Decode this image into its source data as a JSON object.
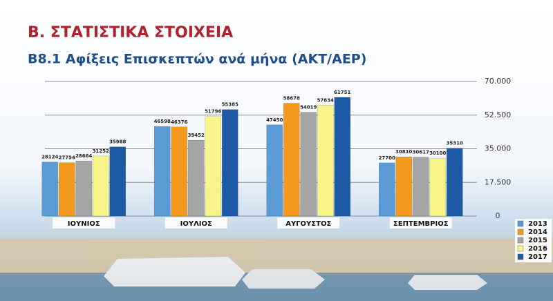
{
  "chart_data": {
    "type": "bar",
    "title": "Β. ΣΤΑΤΙΣΤΙΚΑ ΣΤΟΙΧΕΙΑ",
    "subtitle": "Β8.1 Αφίξεις Επισκεπτών ανά μήνα (ΑΚΤ/ΑΕΡ)",
    "categories": [
      "ΙΟΥΝΙΟΣ",
      "ΙΟΥΛΙΟΣ",
      "ΑΥΓΟΥΣΤΟΣ",
      "ΣΕΠΤΕΜΒΡΙΟΣ"
    ],
    "series": [
      {
        "name": "2013",
        "color": "#5b9bd5",
        "values": [
          28124,
          46598,
          47450,
          27700
        ]
      },
      {
        "name": "2014",
        "color": "#f39a1e",
        "values": [
          27754,
          46376,
          58678,
          30810
        ]
      },
      {
        "name": "2015",
        "color": "#a5a5a5",
        "values": [
          28664,
          39452,
          54019,
          30617
        ]
      },
      {
        "name": "2016",
        "color": "#f7f58a",
        "values": [
          31252,
          51796,
          57634,
          30100
        ]
      },
      {
        "name": "2017",
        "color": "#1c5aa6",
        "values": [
          35988,
          55385,
          61751,
          35310
        ]
      }
    ],
    "ylim": [
      0,
      70000
    ],
    "yticks": [
      0,
      {
        "value": 17500,
        "label": "17.500"
      },
      {
        "value": 35000,
        "label": "35.000"
      },
      {
        "value": 52500,
        "label": "52.500"
      },
      {
        "value": 70000,
        "label": "70.000"
      }
    ],
    "grid": true,
    "legend": "bottom-right"
  }
}
